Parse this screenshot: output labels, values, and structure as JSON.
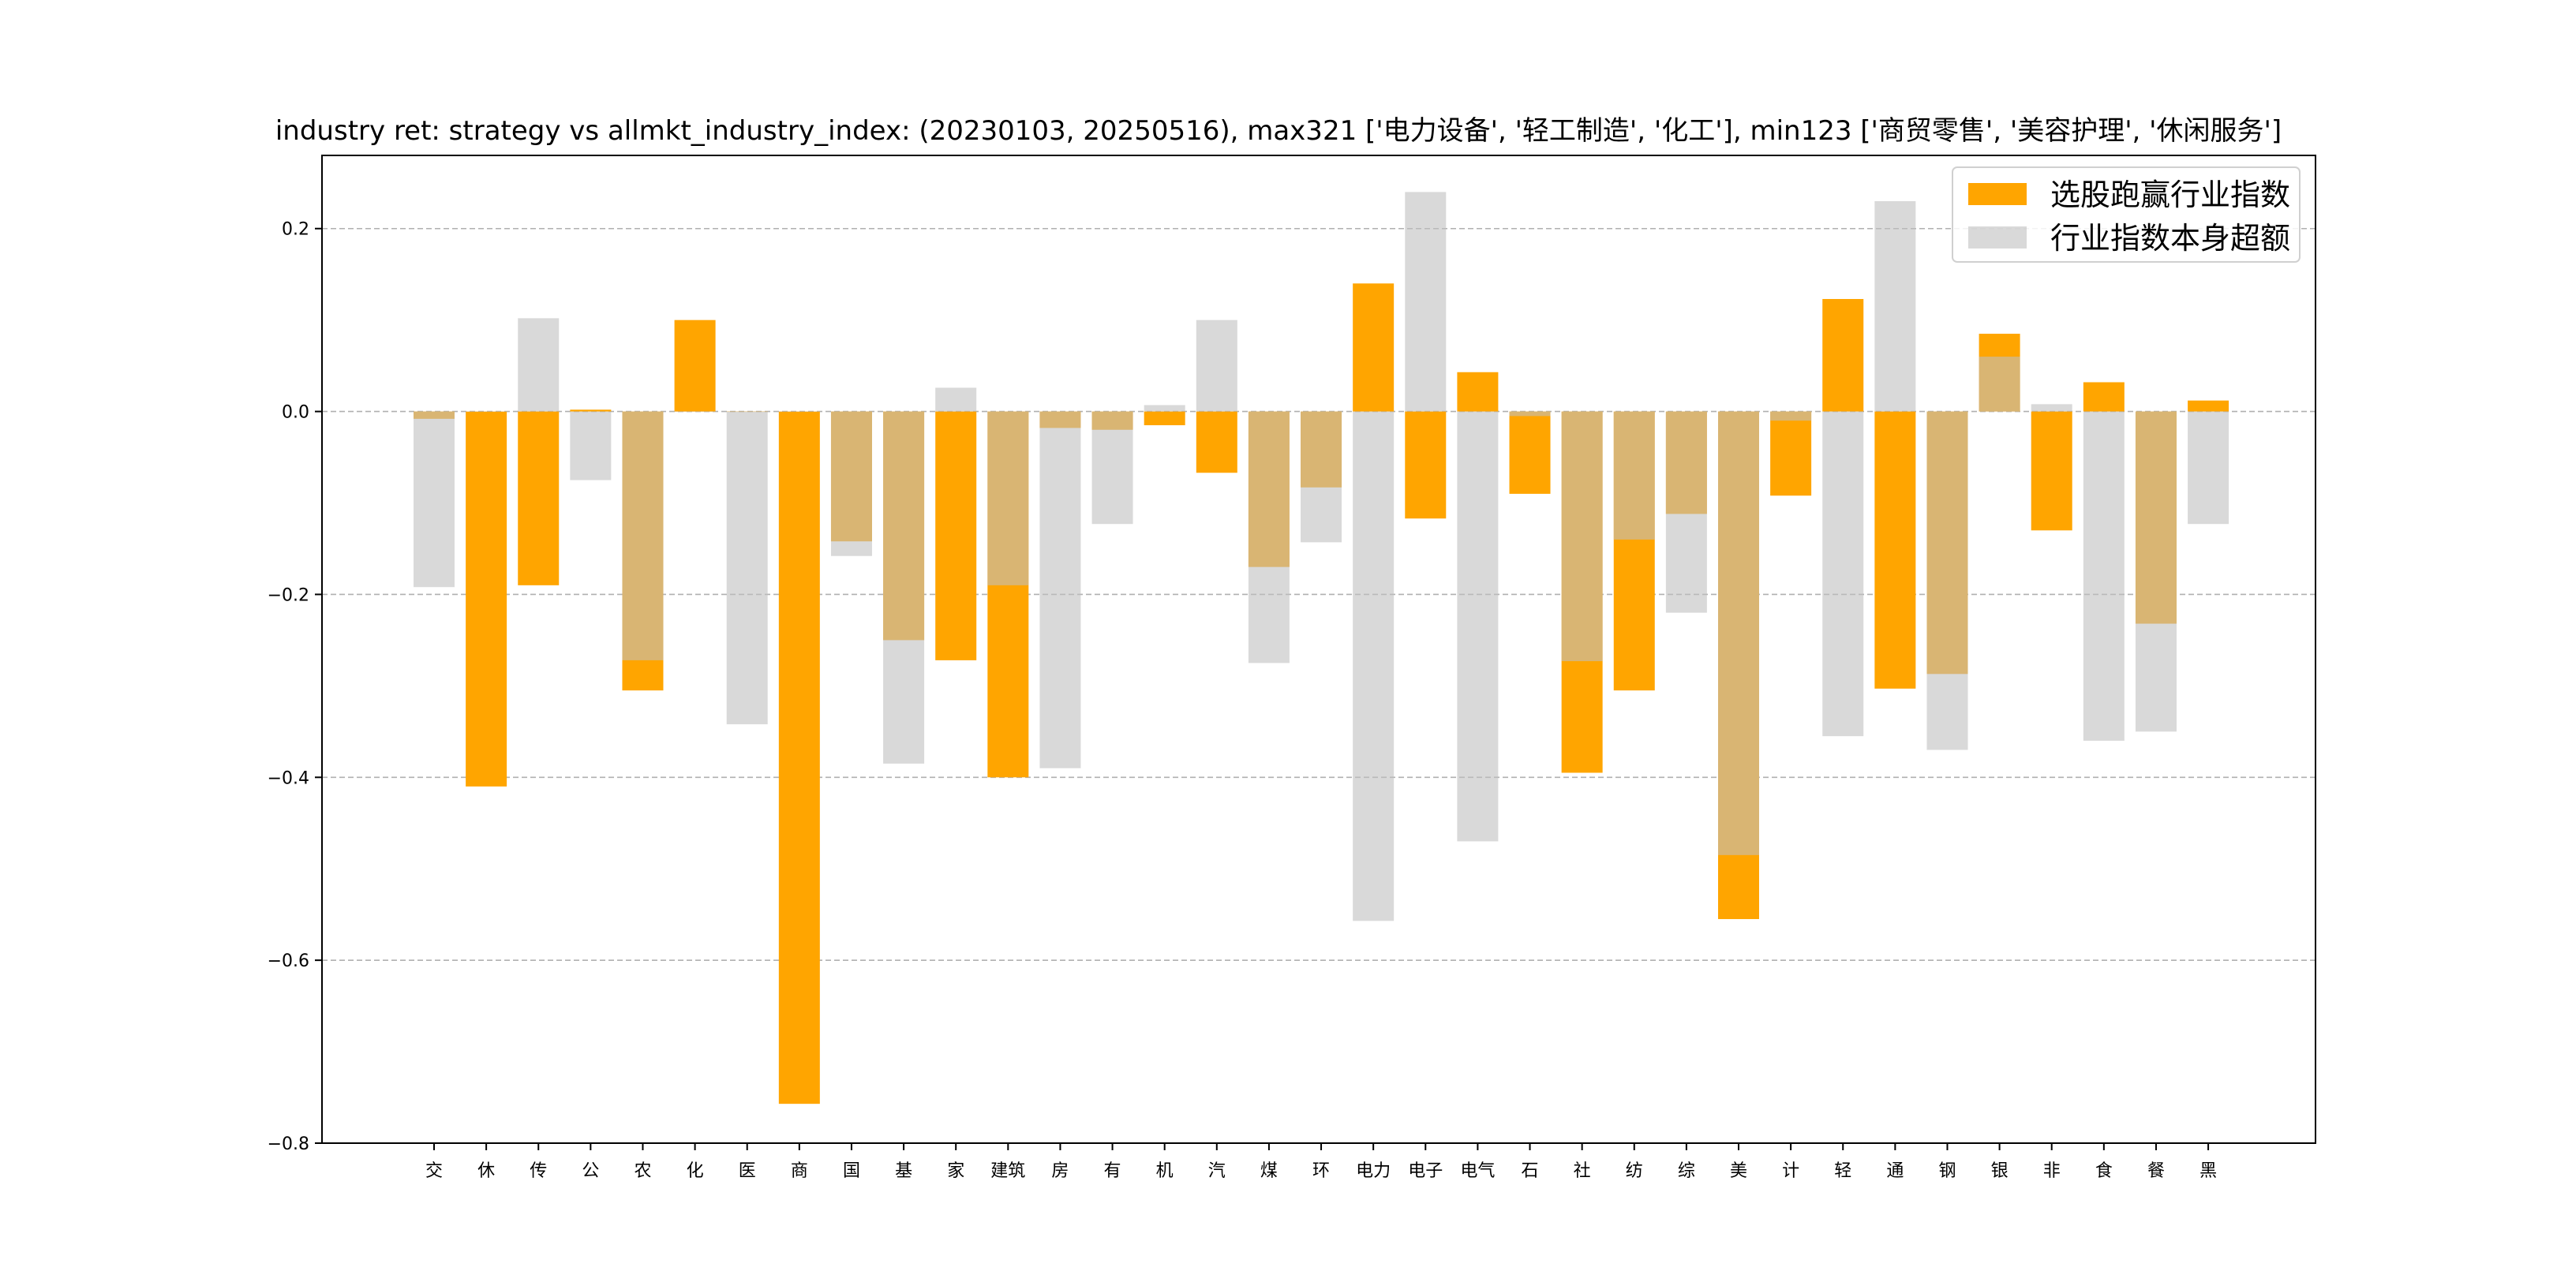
{
  "chart_data": {
    "type": "bar",
    "title": "industry ret: strategy vs allmkt_industry_index: (20230103, 20250516), max321 ['电力设备', '轻工制造', '化工'], min123 ['商贸零售', '美容护理', '休闲服务']",
    "xlabel": "",
    "ylabel": "",
    "ylim": [
      -0.8,
      0.28
    ],
    "yticks": [
      "0.2",
      "0.0",
      "−0.2",
      "−0.4",
      "−0.6",
      "−0.8"
    ],
    "ytick_values": [
      0.2,
      0.0,
      -0.2,
      -0.4,
      -0.6,
      -0.8
    ],
    "grid": "y-dashed",
    "legend_position": "top-right",
    "categories": [
      "交",
      "休",
      "传",
      "公",
      "农",
      "化",
      "医",
      "商",
      "国",
      "基",
      "家",
      "建筑",
      "房",
      "有",
      "机",
      "汽",
      "煤",
      "环",
      "电力",
      "电子",
      "电气",
      "石",
      "社",
      "纺",
      "综",
      "美",
      "计",
      "轻",
      "通",
      "钢",
      "银",
      "非",
      "食",
      "餐",
      "黑"
    ],
    "series": [
      {
        "name": "选股跑赢行业指数",
        "color": "#ffa500",
        "values": [
          -0.008,
          -0.41,
          -0.19,
          0.002,
          -0.305,
          0.1,
          0.0,
          -0.757,
          -0.142,
          -0.25,
          -0.272,
          -0.4,
          -0.018,
          -0.02,
          -0.015,
          -0.067,
          -0.17,
          -0.083,
          0.14,
          -0.117,
          0.043,
          -0.09,
          -0.395,
          -0.305,
          -0.112,
          -0.555,
          -0.092,
          0.123,
          -0.303,
          -0.287,
          0.085,
          -0.13,
          0.032,
          -0.232,
          0.012
        ]
      },
      {
        "name": "行业指数本身超额",
        "color": "#bfbfbf",
        "values": [
          -0.192,
          0.0,
          0.102,
          -0.075,
          -0.272,
          0.0,
          -0.342,
          0.0,
          -0.158,
          -0.385,
          0.026,
          -0.19,
          -0.39,
          -0.123,
          0.007,
          0.1,
          -0.275,
          -0.143,
          -0.557,
          0.24,
          -0.47,
          -0.005,
          -0.273,
          -0.14,
          -0.22,
          -0.485,
          -0.01,
          -0.355,
          0.23,
          -0.37,
          0.06,
          0.008,
          -0.36,
          -0.35,
          -0.123
        ]
      }
    ]
  }
}
